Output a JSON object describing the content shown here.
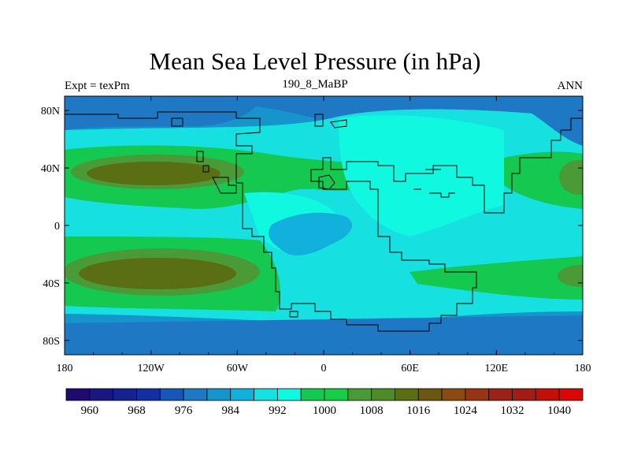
{
  "title": "Mean Sea Level Pressure (in hPa)",
  "left_string": "Expt = texPm",
  "center_string": "190_8_MaBP",
  "right_string": "ANN",
  "map": {
    "x_tick_labels": [
      "180",
      "120W",
      "60W",
      "0",
      "60E",
      "120E",
      "180"
    ],
    "x_tick_values": [
      -180,
      -120,
      -60,
      0,
      60,
      120,
      180
    ],
    "y_tick_labels": [
      "80N",
      "40N",
      "0",
      "40S",
      "80S"
    ],
    "y_tick_values": [
      80,
      40,
      0,
      -40,
      -80
    ],
    "lon_range": [
      -180,
      180
    ],
    "lat_range": [
      -90,
      90
    ]
  },
  "colorbar": {
    "labels": [
      "960",
      "968",
      "976",
      "984",
      "992",
      "1000",
      "1008",
      "1016",
      "1024",
      "1032",
      "1040"
    ],
    "colors": [
      "#1f0a6e",
      "#1a1680",
      "#16228f",
      "#1230a0",
      "#1556b8",
      "#1f78c4",
      "#1694cc",
      "#12b0dc",
      "#16e0e0",
      "#10f8e0",
      "#14c850",
      "#18cc48",
      "#4a9a38",
      "#4e8a28",
      "#5a6e14",
      "#6a5810",
      "#8a4a10",
      "#963414",
      "#9a2216",
      "#a01c14",
      "#c01008",
      "#d80808"
    ]
  }
}
